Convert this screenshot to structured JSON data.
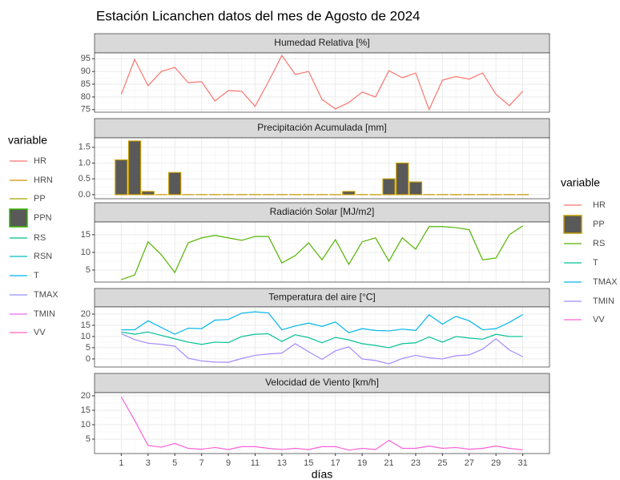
{
  "title": "Estación Licanchen datos del mes de Agosto de 2024",
  "xlabel": "días",
  "left_legend": {
    "title": "variable",
    "entries": [
      {
        "name": "HR",
        "color": "#F8766D",
        "kind": "line"
      },
      {
        "name": "HRN",
        "color": "#D89000",
        "kind": "line"
      },
      {
        "name": "PP",
        "color": "#A3A500",
        "kind": "line"
      },
      {
        "name": "PPN",
        "color": "#39B600",
        "kind": "box"
      },
      {
        "name": "RS",
        "color": "#00BF7D",
        "kind": "line"
      },
      {
        "name": "RSN",
        "color": "#00BFC4",
        "kind": "line"
      },
      {
        "name": "T",
        "color": "#00B0F6",
        "kind": "line"
      },
      {
        "name": "TMAX",
        "color": "#9590FF",
        "kind": "line"
      },
      {
        "name": "TMIN",
        "color": "#E76BF3",
        "kind": "line"
      },
      {
        "name": "VV",
        "color": "#FF62BC",
        "kind": "line"
      }
    ]
  },
  "right_legend": {
    "title": "variable"
  },
  "chart_data": [
    {
      "type": "line",
      "title": "Humedad Relativa [%]",
      "x": [
        1,
        2,
        3,
        4,
        5,
        6,
        7,
        8,
        9,
        10,
        11,
        12,
        13,
        14,
        15,
        16,
        17,
        18,
        19,
        20,
        21,
        22,
        23,
        24,
        25,
        26,
        27,
        28,
        29,
        30,
        31
      ],
      "xlim": [
        -1,
        33
      ],
      "xticks": [
        1,
        3,
        5,
        7,
        9,
        11,
        13,
        15,
        17,
        19,
        21,
        23,
        25,
        27,
        29,
        31
      ],
      "ylim": [
        74,
        97.3
      ],
      "yticks": [
        75,
        80,
        85,
        90,
        95
      ],
      "grid": true,
      "series": [
        {
          "name": "HR",
          "color": "#F8766D",
          "values": [
            81,
            94.7,
            84.4,
            90,
            91.6,
            85.6,
            86,
            78.4,
            82.5,
            82.2,
            76.3,
            86,
            96.3,
            88.8,
            90,
            79,
            75.3,
            77.8,
            81.9,
            80,
            90.3,
            87.5,
            89.4,
            75,
            86.6,
            88,
            87,
            89.4,
            81,
            76.6,
            82.2
          ]
        }
      ]
    },
    {
      "type": "bar",
      "title": "Precipitación Acumulada [mm]",
      "x": [
        1,
        2,
        3,
        4,
        5,
        6,
        7,
        8,
        9,
        10,
        11,
        12,
        13,
        14,
        15,
        16,
        17,
        18,
        19,
        20,
        21,
        22,
        23,
        24,
        25,
        26,
        27,
        28,
        29,
        30,
        31
      ],
      "xlim": [
        -1,
        33
      ],
      "xticks": [
        1,
        3,
        5,
        7,
        9,
        11,
        13,
        15,
        17,
        19,
        21,
        23,
        25,
        27,
        29,
        31
      ],
      "ylim": [
        -0.13,
        1.8
      ],
      "yticks": [
        {
          "value": 0,
          "label": "0.0"
        },
        0.5,
        {
          "value": 1,
          "label": "1.0"
        },
        1.5
      ],
      "grid": true,
      "series": [
        {
          "name": "PP",
          "color": "#C49A00",
          "fill": "#595959",
          "values": [
            1.1,
            1.7,
            0.1,
            0,
            0.7,
            0,
            0,
            0,
            0,
            0,
            0,
            0,
            0,
            0,
            0,
            0,
            0,
            0.1,
            0,
            0,
            0.5,
            1.0,
            0.4,
            0,
            0,
            0,
            0,
            0,
            0,
            0,
            0
          ]
        }
      ]
    },
    {
      "type": "line",
      "title": "Radiación Solar [MJ/m2]",
      "x": [
        1,
        2,
        3,
        4,
        5,
        6,
        7,
        8,
        9,
        10,
        11,
        12,
        13,
        14,
        15,
        16,
        17,
        18,
        19,
        20,
        21,
        22,
        23,
        24,
        25,
        26,
        27,
        28,
        29,
        30,
        31
      ],
      "xlim": [
        -1,
        33
      ],
      "xticks": [
        1,
        3,
        5,
        7,
        9,
        11,
        13,
        15,
        17,
        19,
        21,
        23,
        25,
        27,
        29,
        31
      ],
      "ylim": [
        1.6,
        18.6
      ],
      "yticks": [
        5,
        10,
        15
      ],
      "grid": true,
      "series": [
        {
          "name": "RS",
          "color": "#53B400",
          "values": [
            2.3,
            3.6,
            13,
            9.3,
            4.3,
            12.7,
            14.1,
            14.8,
            14.1,
            13.4,
            14.5,
            14.5,
            7,
            9.1,
            12.7,
            7.9,
            13.6,
            6.6,
            13,
            14.1,
            7.5,
            14.1,
            10.9,
            17.3,
            17.3,
            17,
            16.4,
            7.9,
            8.4,
            15,
            17.5
          ]
        }
      ]
    },
    {
      "type": "line",
      "title": "Temperatura del aire [°C]",
      "x": [
        1,
        2,
        3,
        4,
        5,
        6,
        7,
        8,
        9,
        10,
        11,
        12,
        13,
        14,
        15,
        16,
        17,
        18,
        19,
        20,
        21,
        22,
        23,
        24,
        25,
        26,
        27,
        28,
        29,
        30,
        31
      ],
      "xlim": [
        -1,
        33
      ],
      "xticks": [
        1,
        3,
        5,
        7,
        9,
        11,
        13,
        15,
        17,
        19,
        21,
        23,
        25,
        27,
        29,
        31
      ],
      "ylim": [
        -3.6,
        23.2
      ],
      "yticks": [
        0,
        5,
        10,
        15,
        20
      ],
      "grid": true,
      "series": [
        {
          "name": "T",
          "color": "#00C094",
          "values": [
            12,
            11,
            12,
            10.5,
            9,
            7.5,
            6.5,
            7.5,
            7.3,
            10,
            11,
            11.2,
            7.8,
            10.8,
            9.5,
            7.2,
            9.6,
            8.5,
            6.8,
            6,
            5,
            6.8,
            7.2,
            9.8,
            7.5,
            10,
            9.3,
            8.8,
            11,
            10,
            10
          ]
        },
        {
          "name": "TMAX",
          "color": "#00B6EB",
          "values": [
            13,
            13,
            17,
            14,
            11,
            13.7,
            13.5,
            17.3,
            17.6,
            20.4,
            21,
            20.5,
            13,
            14.7,
            16,
            14.5,
            16.5,
            11.7,
            13.5,
            12.7,
            12.5,
            13.3,
            12.7,
            19.7,
            15.5,
            19,
            17,
            13,
            13.5,
            16.3,
            19.8
          ]
        },
        {
          "name": "TMIN",
          "color": "#A58AFF",
          "values": [
            11.3,
            8.6,
            7,
            6.5,
            5.7,
            0.3,
            -0.9,
            -1.4,
            -1.5,
            0.2,
            1.6,
            2.2,
            2.6,
            6.8,
            3.2,
            -0.2,
            3.6,
            5.4,
            0,
            -0.7,
            -2.2,
            0.2,
            1.6,
            0.5,
            0,
            1.4,
            1.8,
            4.4,
            9,
            4,
            1
          ]
        }
      ]
    },
    {
      "type": "line",
      "title": "Velocidad de Viento [km/h]",
      "x": [
        1,
        2,
        3,
        4,
        5,
        6,
        7,
        8,
        9,
        10,
        11,
        12,
        13,
        14,
        15,
        16,
        17,
        18,
        19,
        20,
        21,
        22,
        23,
        24,
        25,
        26,
        27,
        28,
        29,
        30,
        31
      ],
      "xlim": [
        -1,
        33
      ],
      "xticks": [
        1,
        3,
        5,
        7,
        9,
        11,
        13,
        15,
        17,
        19,
        21,
        23,
        25,
        27,
        29,
        31
      ],
      "ylim": [
        0,
        21.1
      ],
      "yticks": [
        5,
        10,
        15,
        20
      ],
      "grid": true,
      "series": [
        {
          "name": "VV",
          "color": "#FB61D7",
          "values": [
            19.6,
            11.5,
            2.8,
            2.2,
            3.5,
            1.8,
            1.5,
            2.1,
            1.4,
            2.4,
            2.4,
            1.8,
            1.4,
            1.8,
            1.4,
            2.4,
            2.4,
            1.2,
            1.8,
            1.4,
            4.6,
            1.8,
            1.8,
            2.6,
            1.8,
            2.1,
            1.5,
            1.8,
            2.6,
            1.8,
            1.3
          ]
        }
      ]
    }
  ]
}
